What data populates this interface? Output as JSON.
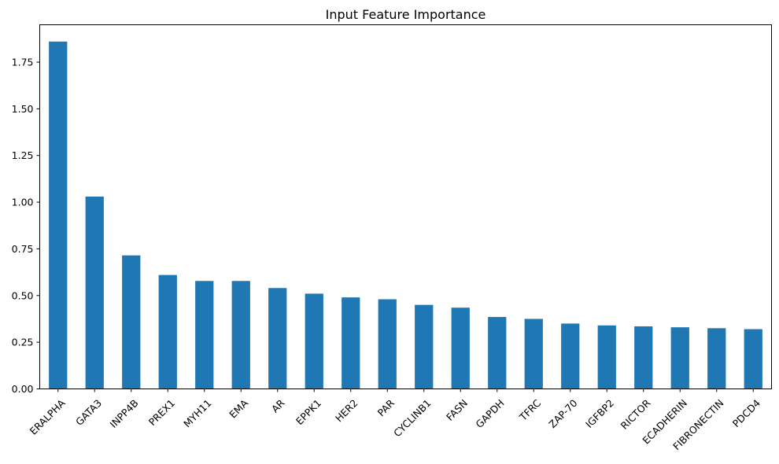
{
  "chart_data": {
    "type": "bar",
    "title": "Input Feature Importance",
    "xlabel": "",
    "ylabel": "",
    "categories": [
      "ERALPHA",
      "GATA3",
      "INPP4B",
      "PREX1",
      "MYH11",
      "EMA",
      "AR",
      "EPPK1",
      "HER2",
      "PAR",
      "CYCLINB1",
      "FASN",
      "GAPDH",
      "TFRC",
      "ZAP-70",
      "IGFBP2",
      "RICTOR",
      "ECADHERIN",
      "FIBRONECTIN",
      "PDCD4"
    ],
    "values": [
      1.86,
      1.03,
      0.715,
      0.61,
      0.578,
      0.578,
      0.54,
      0.51,
      0.49,
      0.48,
      0.45,
      0.435,
      0.385,
      0.375,
      0.35,
      0.34,
      0.335,
      0.33,
      0.325,
      0.32
    ],
    "ylim": [
      0,
      1.95
    ],
    "yticks": [
      "0.00",
      "0.25",
      "0.50",
      "0.75",
      "1.00",
      "1.25",
      "1.50",
      "1.75"
    ],
    "grid": false,
    "bar_color": "#1f77b4"
  }
}
